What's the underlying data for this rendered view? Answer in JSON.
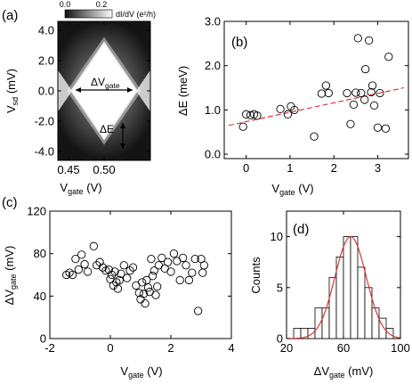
{
  "colors": {
    "axis": "#000000",
    "marker": "#000000",
    "fit_line": "#e0242a",
    "histogram_fill": "#ffffff",
    "map_dark": "#111111",
    "map_light": "#ffffff"
  },
  "chart_data": [
    {
      "id": "a",
      "panel_label": "(a)",
      "type": "heatmap",
      "xlabel": "V",
      "xlabel_sub": "gate",
      "xlabel_unit": " (V)",
      "ylabel": "V",
      "ylabel_sub": "sd",
      "ylabel_unit": " (mV)",
      "xlim": [
        0.435,
        0.565
      ],
      "ylim": [
        -4.6,
        4.6
      ],
      "x_ticks": [
        0.45,
        0.5
      ],
      "x_tick_labels": [
        "0.45",
        "0.50"
      ],
      "y_ticks": [
        4.0,
        2.0,
        0.0,
        -2.0,
        -4.0
      ],
      "y_tick_labels": [
        "4.0",
        "2.0",
        "0.0",
        "-2.0",
        "-4.0"
      ],
      "colorbar": {
        "ticks": [
          0.0,
          0.2
        ],
        "tick_labels": [
          "0.0",
          "0.2"
        ],
        "label": "dI/dV (e²/h)"
      },
      "diamond_vertices_at_zero_bias": [
        0.455,
        0.545
      ],
      "diamond_top_bias": 3.1,
      "annotations": [
        {
          "text": "ΔV",
          "sub": "gate"
        },
        {
          "text": "ΔE"
        }
      ]
    },
    {
      "id": "b",
      "panel_label": "(b)",
      "type": "scatter",
      "xlabel": "V",
      "xlabel_sub": "gate",
      "xlabel_unit": " (V)",
      "ylabel": "ΔE (meV)",
      "xlim": [
        -0.5,
        3.7
      ],
      "ylim": [
        -0.1,
        3.0
      ],
      "x_ticks": [
        0,
        1,
        2,
        3
      ],
      "y_ticks": [
        0.0,
        1.0,
        2.0,
        3.0
      ],
      "y_tick_labels": [
        "0.0",
        "1.0",
        "2.0",
        "3.0"
      ],
      "points": [
        [
          -0.07,
          0.62
        ],
        [
          0.0,
          0.9
        ],
        [
          0.1,
          0.88
        ],
        [
          0.18,
          0.9
        ],
        [
          0.25,
          0.87
        ],
        [
          0.78,
          1.02
        ],
        [
          0.95,
          0.9
        ],
        [
          1.02,
          1.08
        ],
        [
          1.1,
          1.0
        ],
        [
          1.55,
          0.4
        ],
        [
          1.72,
          1.37
        ],
        [
          1.82,
          1.55
        ],
        [
          1.88,
          1.38
        ],
        [
          2.3,
          1.38
        ],
        [
          2.38,
          0.68
        ],
        [
          2.45,
          1.12
        ],
        [
          2.5,
          1.39
        ],
        [
          2.55,
          2.62
        ],
        [
          2.62,
          1.38
        ],
        [
          2.7,
          1.23
        ],
        [
          2.72,
          1.92
        ],
        [
          2.8,
          2.57
        ],
        [
          2.85,
          1.4
        ],
        [
          2.88,
          1.55
        ],
        [
          2.92,
          1.1
        ],
        [
          3.0,
          0.6
        ],
        [
          3.05,
          1.38
        ],
        [
          3.18,
          0.58
        ],
        [
          3.25,
          2.2
        ]
      ],
      "fit_line": {
        "style": "dashed",
        "x": [
          -0.4,
          3.6
        ],
        "y": [
          0.65,
          1.5
        ]
      }
    },
    {
      "id": "c",
      "panel_label": "(c)",
      "type": "scatter",
      "xlabel": "V",
      "xlabel_sub": "gate",
      "xlabel_unit": " (V)",
      "ylabel": "ΔV",
      "ylabel_sub": "gate",
      "ylabel_unit": " (mV)",
      "xlim": [
        -2,
        4
      ],
      "ylim": [
        0,
        120
      ],
      "x_ticks": [
        -2,
        0,
        2,
        4
      ],
      "y_ticks": [
        0,
        40,
        80,
        120
      ],
      "points": [
        [
          -1.45,
          60
        ],
        [
          -1.35,
          62
        ],
        [
          -1.25,
          60
        ],
        [
          -1.15,
          75
        ],
        [
          -1.05,
          65
        ],
        [
          -0.95,
          79
        ],
        [
          -0.85,
          70
        ],
        [
          -0.75,
          63
        ],
        [
          -0.55,
          87
        ],
        [
          -0.45,
          69
        ],
        [
          -0.35,
          72
        ],
        [
          -0.25,
          67
        ],
        [
          -0.15,
          64
        ],
        [
          -0.05,
          65
        ],
        [
          0.0,
          56
        ],
        [
          0.05,
          60
        ],
        [
          0.1,
          50
        ],
        [
          0.15,
          63
        ],
        [
          0.2,
          53
        ],
        [
          0.25,
          47
        ],
        [
          0.3,
          55
        ],
        [
          0.35,
          61
        ],
        [
          0.45,
          69
        ],
        [
          0.55,
          57
        ],
        [
          0.65,
          64
        ],
        [
          0.75,
          67
        ],
        [
          0.85,
          50
        ],
        [
          0.95,
          43
        ],
        [
          1.0,
          37
        ],
        [
          1.05,
          53
        ],
        [
          1.1,
          42
        ],
        [
          1.15,
          33
        ],
        [
          1.2,
          55
        ],
        [
          1.25,
          48
        ],
        [
          1.3,
          44
        ],
        [
          1.35,
          75
        ],
        [
          1.4,
          59
        ],
        [
          1.45,
          64
        ],
        [
          1.5,
          41
        ],
        [
          1.55,
          49
        ],
        [
          1.6,
          69
        ],
        [
          1.7,
          76
        ],
        [
          1.8,
          66
        ],
        [
          1.9,
          72
        ],
        [
          2.0,
          63
        ],
        [
          2.1,
          80
        ],
        [
          2.2,
          73
        ],
        [
          2.3,
          55
        ],
        [
          2.4,
          76
        ],
        [
          2.5,
          69
        ],
        [
          2.6,
          55
        ],
        [
          2.7,
          62
        ],
        [
          2.8,
          75
        ],
        [
          2.9,
          26
        ],
        [
          3.0,
          75
        ],
        [
          3.05,
          62
        ],
        [
          3.1,
          69
        ]
      ]
    },
    {
      "id": "d",
      "panel_label": "(d)",
      "type": "bar",
      "xlabel": "ΔV",
      "xlabel_sub": "gate",
      "xlabel_unit": " (mV)",
      "ylabel": "Counts",
      "xlim": [
        20,
        100
      ],
      "ylim": [
        0,
        12.5
      ],
      "x_ticks": [
        20,
        60,
        100
      ],
      "y_ticks": [
        0,
        5,
        10
      ],
      "bin_width": 5,
      "bins": [
        {
          "x0": 25,
          "count": 1
        },
        {
          "x0": 30,
          "count": 1
        },
        {
          "x0": 35,
          "count": 1
        },
        {
          "x0": 40,
          "count": 3
        },
        {
          "x0": 45,
          "count": 3
        },
        {
          "x0": 50,
          "count": 6
        },
        {
          "x0": 55,
          "count": 8
        },
        {
          "x0": 60,
          "count": 10
        },
        {
          "x0": 65,
          "count": 10
        },
        {
          "x0": 70,
          "count": 7
        },
        {
          "x0": 75,
          "count": 5
        },
        {
          "x0": 80,
          "count": 3
        },
        {
          "x0": 85,
          "count": 2
        },
        {
          "x0": 90,
          "count": 1
        }
      ],
      "gaussian_fit": {
        "amplitude": 10,
        "mean": 65,
        "sigma": 11
      }
    }
  ]
}
